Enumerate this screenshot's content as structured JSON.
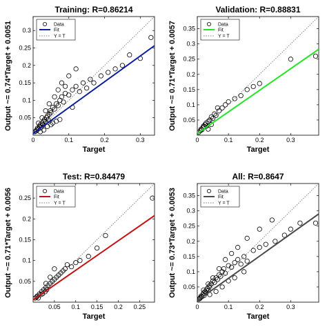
{
  "figure": {
    "legend_labels": [
      "Data",
      "Fit",
      "Y = T"
    ]
  },
  "chart_data": [
    {
      "type": "scatter",
      "title": "Training: R=0.86214",
      "xlabel": "Target",
      "ylabel": "Output ~= 0.74*Target + 0.0051",
      "xlim": [
        0,
        0.34
      ],
      "ylim": [
        0,
        0.34
      ],
      "xticks": [
        0,
        0.1,
        0.2,
        0.3
      ],
      "yticks": [
        0.05,
        0.1,
        0.15,
        0.2,
        0.25,
        0.3
      ],
      "tick_labels_x": [
        "0",
        "0.1",
        "0.2",
        "0.3"
      ],
      "tick_labels_y": [
        "0.05",
        "0.1",
        "0.15",
        "0.2",
        "0.25",
        "0.3"
      ],
      "fit": {
        "slope": 0.74,
        "intercept": 0.0051,
        "color": "#0b1ea0"
      },
      "legend_position": "top-left",
      "grid": false,
      "x": [
        0.005,
        0.008,
        0.01,
        0.012,
        0.015,
        0.018,
        0.02,
        0.022,
        0.025,
        0.028,
        0.03,
        0.032,
        0.035,
        0.038,
        0.04,
        0.042,
        0.045,
        0.048,
        0.05,
        0.055,
        0.06,
        0.065,
        0.07,
        0.075,
        0.08,
        0.085,
        0.09,
        0.1,
        0.11,
        0.12,
        0.13,
        0.14,
        0.15,
        0.16,
        0.17,
        0.19,
        0.21,
        0.23,
        0.25,
        0.27,
        0.3,
        0.33,
        0.015,
        0.025,
        0.035,
        0.045,
        0.06,
        0.07,
        0.08,
        0.09,
        0.1,
        0.12,
        0.05,
        0.065,
        0.02,
        0.03,
        0.04,
        0.055,
        0.075,
        0.11
      ],
      "y": [
        0.01,
        0.012,
        0.015,
        0.02,
        0.018,
        0.025,
        0.03,
        0.022,
        0.035,
        0.03,
        0.04,
        0.045,
        0.038,
        0.05,
        0.055,
        0.045,
        0.06,
        0.07,
        0.065,
        0.08,
        0.075,
        0.09,
        0.085,
        0.1,
        0.11,
        0.095,
        0.12,
        0.115,
        0.13,
        0.14,
        0.125,
        0.15,
        0.135,
        0.16,
        0.15,
        0.17,
        0.18,
        0.19,
        0.2,
        0.23,
        0.22,
        0.28,
        0.035,
        0.05,
        0.07,
        0.09,
        0.11,
        0.13,
        0.15,
        0.14,
        0.17,
        0.19,
        0.03,
        0.04,
        0.01,
        0.015,
        0.025,
        0.035,
        0.045,
        0.08
      ]
    },
    {
      "type": "scatter",
      "title": "Validation: R=0.88831",
      "xlabel": "Target",
      "ylabel": "Output ~= 0.71*Target + 0.0057",
      "xlim": [
        0,
        0.39
      ],
      "ylim": [
        0,
        0.39
      ],
      "xticks": [
        0,
        0.1,
        0.2,
        0.3
      ],
      "yticks": [
        0.05,
        0.1,
        0.15,
        0.2,
        0.25,
        0.3,
        0.35
      ],
      "tick_labels_x": [
        "0",
        "0.1",
        "0.2",
        "0.3"
      ],
      "tick_labels_y": [
        "0.05",
        "0.1",
        "0.15",
        "0.2",
        "0.25",
        "0.3",
        "0.35"
      ],
      "fit": {
        "slope": 0.71,
        "intercept": 0.0057,
        "color": "#22e622"
      },
      "legend_position": "top-left",
      "grid": false,
      "x": [
        0.005,
        0.01,
        0.012,
        0.015,
        0.018,
        0.02,
        0.022,
        0.025,
        0.028,
        0.03,
        0.035,
        0.04,
        0.045,
        0.05,
        0.055,
        0.06,
        0.07,
        0.08,
        0.09,
        0.1,
        0.12,
        0.14,
        0.16,
        0.18,
        0.2,
        0.3,
        0.38,
        0.035,
        0.045,
        0.065
      ],
      "y": [
        0.01,
        0.015,
        0.02,
        0.018,
        0.025,
        0.03,
        0.028,
        0.035,
        0.04,
        0.03,
        0.045,
        0.05,
        0.06,
        0.055,
        0.07,
        0.065,
        0.08,
        0.09,
        0.1,
        0.11,
        0.12,
        0.13,
        0.15,
        0.16,
        0.17,
        0.25,
        0.26,
        0.02,
        0.035,
        0.09
      ]
    },
    {
      "type": "scatter",
      "title": "Test: R=0.84479",
      "xlabel": "Target",
      "ylabel": "Output ~= 0.71*Target + 0.0056",
      "xlim": [
        0,
        0.285
      ],
      "ylim": [
        0,
        0.285
      ],
      "xticks": [
        0.05,
        0.1,
        0.15,
        0.2,
        0.25
      ],
      "yticks": [
        0.05,
        0.1,
        0.15,
        0.2,
        0.25
      ],
      "tick_labels_x": [
        "0.05",
        "0.1",
        "0.15",
        "0.2",
        "0.25"
      ],
      "tick_labels_y": [
        "0.05",
        "0.1",
        "0.15",
        "0.2",
        "0.25"
      ],
      "fit": {
        "slope": 0.71,
        "intercept": 0.0056,
        "color": "#c41212"
      },
      "legend_position": "top-left",
      "grid": false,
      "x": [
        0.005,
        0.008,
        0.01,
        0.012,
        0.015,
        0.018,
        0.02,
        0.022,
        0.025,
        0.028,
        0.03,
        0.032,
        0.035,
        0.04,
        0.045,
        0.05,
        0.055,
        0.06,
        0.065,
        0.07,
        0.075,
        0.08,
        0.09,
        0.1,
        0.11,
        0.13,
        0.15,
        0.17,
        0.28,
        0.03,
        0.04,
        0.05
      ],
      "y": [
        0.01,
        0.012,
        0.015,
        0.01,
        0.02,
        0.018,
        0.025,
        0.02,
        0.03,
        0.025,
        0.035,
        0.03,
        0.04,
        0.045,
        0.05,
        0.055,
        0.06,
        0.065,
        0.07,
        0.075,
        0.08,
        0.09,
        0.085,
        0.095,
        0.1,
        0.11,
        0.13,
        0.16,
        0.25,
        0.045,
        0.06,
        0.08
      ]
    },
    {
      "type": "scatter",
      "title": "All: R=0.8647",
      "xlabel": "Target",
      "ylabel": "Output ~= 0.73*Target + 0.0053",
      "xlim": [
        0,
        0.39
      ],
      "ylim": [
        0,
        0.39
      ],
      "xticks": [
        0,
        0.1,
        0.2,
        0.3
      ],
      "yticks": [
        0.05,
        0.1,
        0.15,
        0.2,
        0.25,
        0.3,
        0.35
      ],
      "tick_labels_x": [
        "0",
        "0.1",
        "0.2",
        "0.3"
      ],
      "tick_labels_y": [
        "0.05",
        "0.1",
        "0.15",
        "0.2",
        "0.25",
        "0.3",
        "0.35"
      ],
      "fit": {
        "slope": 0.73,
        "intercept": 0.0053,
        "color": "#4a4a4a"
      },
      "legend_position": "top-left",
      "grid": false,
      "x": [
        0.005,
        0.008,
        0.01,
        0.012,
        0.015,
        0.018,
        0.02,
        0.022,
        0.025,
        0.028,
        0.03,
        0.032,
        0.035,
        0.038,
        0.04,
        0.045,
        0.05,
        0.055,
        0.06,
        0.065,
        0.07,
        0.075,
        0.08,
        0.085,
        0.09,
        0.1,
        0.11,
        0.12,
        0.13,
        0.14,
        0.15,
        0.16,
        0.18,
        0.2,
        0.22,
        0.25,
        0.28,
        0.3,
        0.33,
        0.38,
        0.02,
        0.035,
        0.05,
        0.07,
        0.09,
        0.11,
        0.13,
        0.16,
        0.2,
        0.24,
        0.04,
        0.06,
        0.08,
        0.1,
        0.12,
        0.15
      ],
      "y": [
        0.01,
        0.012,
        0.015,
        0.02,
        0.018,
        0.025,
        0.03,
        0.022,
        0.035,
        0.03,
        0.04,
        0.045,
        0.038,
        0.05,
        0.055,
        0.06,
        0.07,
        0.065,
        0.08,
        0.075,
        0.09,
        0.085,
        0.1,
        0.11,
        0.095,
        0.12,
        0.115,
        0.13,
        0.14,
        0.125,
        0.15,
        0.135,
        0.17,
        0.18,
        0.19,
        0.2,
        0.22,
        0.24,
        0.26,
        0.26,
        0.04,
        0.06,
        0.08,
        0.11,
        0.14,
        0.16,
        0.18,
        0.21,
        0.24,
        0.27,
        0.025,
        0.035,
        0.05,
        0.07,
        0.08,
        0.1
      ]
    }
  ]
}
